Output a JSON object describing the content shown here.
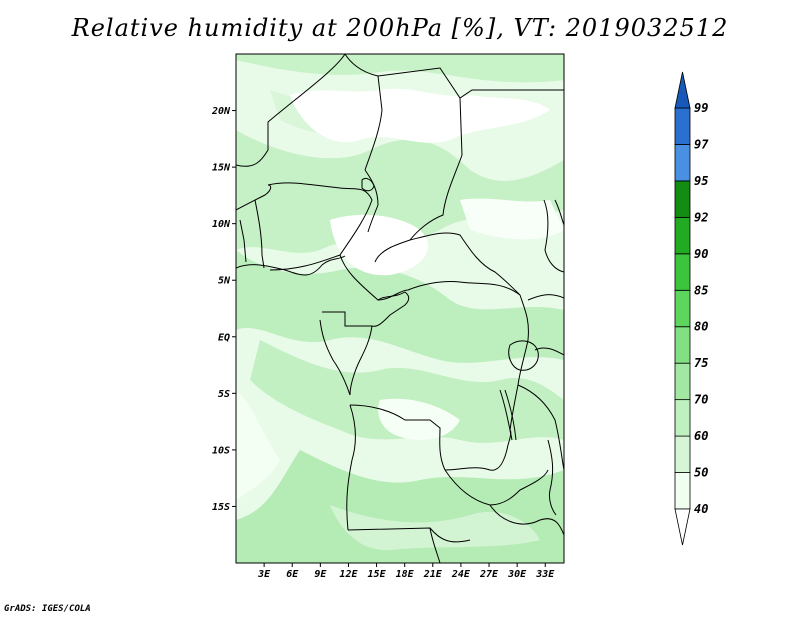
{
  "title": "Relative humidity at 200hPa [%], VT: 2019032512",
  "credit": "GrADS: IGES/COLA",
  "map": {
    "lon_range": [
      0,
      35
    ],
    "lat_range": [
      -20,
      25
    ],
    "lat_ticks": [
      {
        "value": 20,
        "label": "20N"
      },
      {
        "value": 15,
        "label": "15N"
      },
      {
        "value": 10,
        "label": "10N"
      },
      {
        "value": 5,
        "label": "5N"
      },
      {
        "value": 0,
        "label": "EQ"
      },
      {
        "value": -5,
        "label": "5S"
      },
      {
        "value": -10,
        "label": "10S"
      },
      {
        "value": -15,
        "label": "15S"
      }
    ],
    "lon_ticks": [
      {
        "value": 3,
        "label": "3E"
      },
      {
        "value": 6,
        "label": "6E"
      },
      {
        "value": 9,
        "label": "9E"
      },
      {
        "value": 12,
        "label": "12E"
      },
      {
        "value": 15,
        "label": "15E"
      },
      {
        "value": 18,
        "label": "18E"
      },
      {
        "value": 21,
        "label": "21E"
      },
      {
        "value": 24,
        "label": "24E"
      },
      {
        "value": 27,
        "label": "27E"
      },
      {
        "value": 30,
        "label": "30E"
      },
      {
        "value": 33,
        "label": "33E"
      }
    ]
  },
  "colorbar": {
    "levels": [
      {
        "label": "40",
        "color": "#f0fff0"
      },
      {
        "label": "50",
        "color": "#d6f5d6"
      },
      {
        "label": "60",
        "color": "#bff0bf"
      },
      {
        "label": "70",
        "color": "#a2e8a2"
      },
      {
        "label": "75",
        "color": "#82e082"
      },
      {
        "label": "80",
        "color": "#5cd65c"
      },
      {
        "label": "85",
        "color": "#3cc43c"
      },
      {
        "label": "90",
        "color": "#22aa22"
      },
      {
        "label": "92",
        "color": "#128c12"
      },
      {
        "label": "95",
        "color": "#4a90e2"
      },
      {
        "label": "97",
        "color": "#2a70d0"
      },
      {
        "label": "99",
        "color": "#1858b8"
      }
    ]
  }
}
